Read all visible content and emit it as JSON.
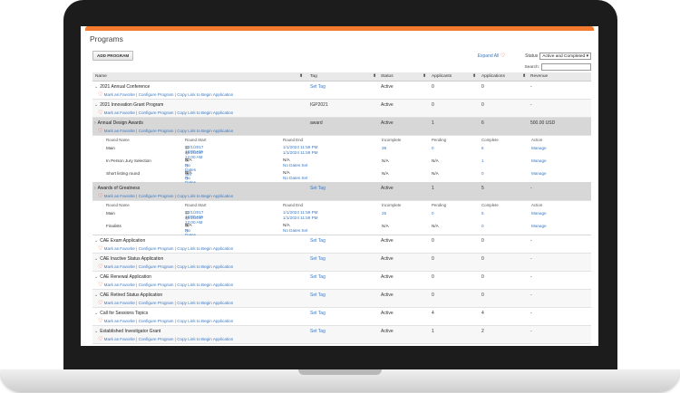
{
  "page": {
    "title": "Programs"
  },
  "toolbar": {
    "add_label": "ADD PROGRAM",
    "expand_all": "Expand All",
    "heart_icon": "heart-icon",
    "status_label": "Status",
    "status_value": "Active and Completed",
    "search_label": "Search:"
  },
  "columns": {
    "name": "Name",
    "tag": "Tag",
    "status": "Status",
    "applicants": "Applicants",
    "applications": "Applications",
    "revenue": "Revenue"
  },
  "row_links": {
    "favorite": "Mark as Favorite",
    "configure": "Configure Program",
    "copy": "Copy Link to Begin Application",
    "separator": "|"
  },
  "round_columns": {
    "name": "Round Name",
    "start": "Round Start",
    "end": "Round End",
    "incomplete": "Incomplete",
    "pending": "Pending",
    "complete": "Complete",
    "action": "Action"
  },
  "programs": [
    {
      "name": "2021 Annual Conference",
      "tag": "Set Tag",
      "status": "Active",
      "applicants": "0",
      "applications": "0",
      "revenue": "-"
    },
    {
      "name": "2021 Innovation Grant Program",
      "tag": "IGP2021",
      "status": "Active",
      "applicants": "0",
      "applications": "0",
      "revenue": "-"
    },
    {
      "name": "Annual Design Awards",
      "tag": "award",
      "status": "Active",
      "applicants": "1",
      "applications": "6",
      "revenue": "500.00 USD",
      "rounds": [
        {
          "name": "Main",
          "start1": "12/1/2017 12:00 AM",
          "start2": "12/1/2017 12:00 AM",
          "end1": "1/1/2024 11:59 PM",
          "end2": "1/1/2024 11:59 PM",
          "incomplete": "39",
          "pending": "0",
          "complete": "6",
          "action": "Manage"
        },
        {
          "name": "In Person Jury Selection",
          "start1": "N/A",
          "start2": "No Dates Set",
          "end1": "N/A",
          "end2": "No Dates Set",
          "incomplete": "N/A",
          "pending": "N/A",
          "complete": "1",
          "action": "Manage"
        },
        {
          "name": "Short listing round",
          "start1": "N/A",
          "start2": "No Dates Set",
          "end1": "N/A",
          "end2": "No Dates Set",
          "incomplete": "N/A",
          "pending": "N/A",
          "complete": "0",
          "action": "Manage"
        }
      ]
    },
    {
      "name": "Awards of Greatness",
      "tag": "Set Tag",
      "status": "Active",
      "applicants": "1",
      "applications": "5",
      "revenue": "-",
      "rounds": [
        {
          "name": "Main",
          "start1": "12/1/2017 12:00 AM",
          "start2": "12/1/2017 12:00 AM",
          "end1": "1/1/2024 11:59 PM",
          "end2": "1/1/2024 11:59 PM",
          "incomplete": "25",
          "pending": "0",
          "complete": "5",
          "action": "Manage"
        },
        {
          "name": "Finalists",
          "start1": "N/A",
          "start2": "No Dates Set",
          "end1": "N/A",
          "end2": "No Dates Set",
          "incomplete": "N/A",
          "pending": "N/A",
          "complete": "0",
          "action": "Manage"
        }
      ]
    },
    {
      "name": "CAE Exam Application",
      "tag": "Set Tag",
      "status": "Active",
      "applicants": "0",
      "applications": "0",
      "revenue": "-"
    },
    {
      "name": "CAE Inactive Status Application",
      "tag": "Set Tag",
      "status": "Active",
      "applicants": "0",
      "applications": "0",
      "revenue": "-"
    },
    {
      "name": "CAE Renewal Application",
      "tag": "Set Tag",
      "status": "Active",
      "applicants": "0",
      "applications": "0",
      "revenue": "-"
    },
    {
      "name": "CAE Retired Status Application",
      "tag": "Set Tag",
      "status": "Active",
      "applicants": "0",
      "applications": "0",
      "revenue": "-"
    },
    {
      "name": "Call for Sessions Topics",
      "tag": "Set Tag",
      "status": "Active",
      "applicants": "4",
      "applications": "4",
      "revenue": "-"
    },
    {
      "name": "Established Investigator Grant",
      "tag": "Set Tag",
      "status": "Active",
      "applicants": "1",
      "applications": "2",
      "revenue": "-"
    }
  ],
  "colors": {
    "accent": "#f47a30",
    "link": "#3a78c3"
  }
}
